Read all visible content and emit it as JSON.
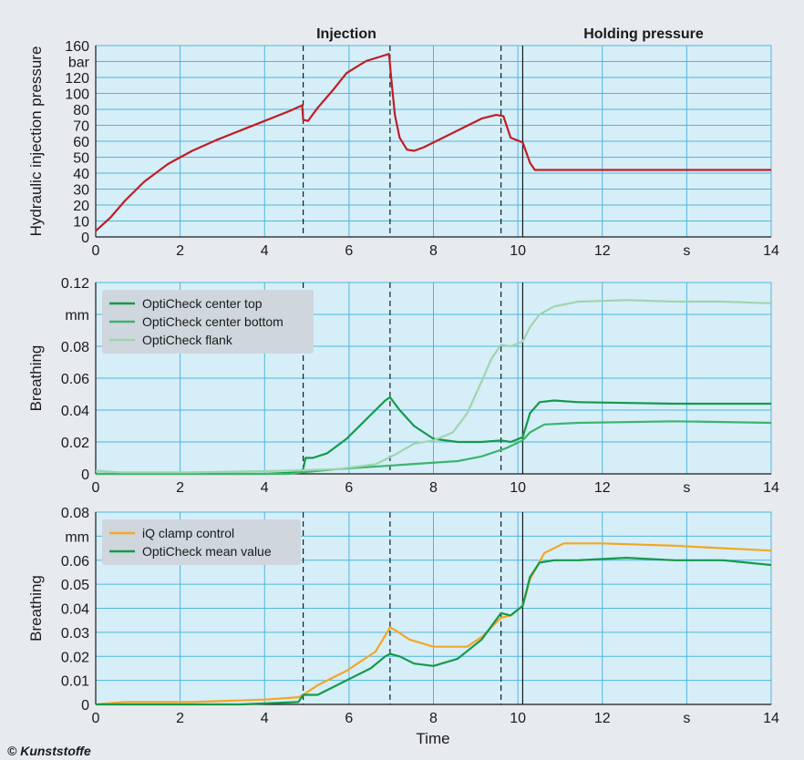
{
  "phases": [
    "Injection",
    "Holding pressure"
  ],
  "xlabel": "Time",
  "copyright": "© Kunststoffe",
  "colors": {
    "plot_bg": "#d6eef8",
    "grid": "#4fb6dd",
    "pressure": "#c01e24",
    "center_top": "#139a4a",
    "center_bottom": "#3cb46c",
    "flank": "#9fd5ad",
    "iq": "#f5a623",
    "mean": "#139a4a"
  },
  "chart_data": [
    {
      "type": "line",
      "ylabel": "Hydraulic injection pressure",
      "unit": "bar",
      "xlim": [
        0,
        14
      ],
      "ylim": [
        0,
        160
      ],
      "xticks": [
        "0",
        "2",
        "4",
        "6",
        "8",
        "10",
        "12",
        "s",
        "14"
      ],
      "yticks": [
        "0",
        "10",
        "20",
        "30",
        "40",
        "50",
        "60",
        "70",
        "80",
        "100",
        "120",
        "bar",
        "160"
      ],
      "vlines_dashed": [
        4.3,
        6.1,
        8.4
      ],
      "vline_solid": 8.85,
      "series": [
        {
          "color": "#c01e24",
          "x": [
            0,
            0.3,
            0.6,
            1.0,
            1.5,
            2.0,
            2.5,
            3.0,
            3.5,
            4.0,
            4.28,
            4.3,
            4.4,
            4.6,
            4.9,
            5.2,
            5.6,
            6.0,
            6.08,
            6.12,
            6.2,
            6.3,
            6.45,
            6.6,
            6.8,
            7.2,
            7.6,
            8.0,
            8.3,
            8.45,
            8.6,
            8.85,
            9.0,
            9.1,
            10,
            12,
            14
          ],
          "y": [
            5,
            16,
            30,
            46,
            61,
            72,
            81,
            89,
            97,
            105,
            110,
            98,
            97,
            108,
            122,
            137,
            147,
            152,
            153,
            135,
            102,
            83,
            73,
            72,
            75,
            83,
            91,
            99,
            102,
            101,
            83,
            79,
            62,
            56,
            56,
            56,
            56
          ]
        }
      ]
    },
    {
      "type": "line",
      "ylabel": "Breathing",
      "unit": "mm",
      "xlim": [
        0,
        14
      ],
      "ylim": [
        0,
        0.12
      ],
      "xticks": [
        "0",
        "2",
        "4",
        "6",
        "8",
        "10",
        "12",
        "s",
        "14"
      ],
      "yticks": [
        "0",
        "0.02",
        "0.04",
        "0.06",
        "0.08",
        "mm",
        "0.12"
      ],
      "vlines_dashed": [
        4.3,
        6.1,
        8.4
      ],
      "vline_solid": 8.85,
      "legend": [
        "OptiCheck center top",
        "OptiCheck center bottom",
        "OptiCheck flank"
      ],
      "series": [
        {
          "name": "OptiCheck center top",
          "color": "#139a4a",
          "x": [
            0,
            3.5,
            4.25,
            4.3,
            4.35,
            4.5,
            4.8,
            5.2,
            5.6,
            6.0,
            6.1,
            6.3,
            6.6,
            7.0,
            7.5,
            8.0,
            8.4,
            8.6,
            8.85,
            9.0,
            9.2,
            9.5,
            10,
            12,
            14
          ],
          "y": [
            0,
            0,
            0.001,
            0.003,
            0.01,
            0.01,
            0.013,
            0.022,
            0.034,
            0.046,
            0.048,
            0.04,
            0.03,
            0.022,
            0.02,
            0.02,
            0.021,
            0.02,
            0.023,
            0.038,
            0.045,
            0.046,
            0.045,
            0.044,
            0.044
          ]
        },
        {
          "name": "OptiCheck center bottom",
          "color": "#3cb46c",
          "x": [
            0,
            4.0,
            4.3,
            5.0,
            6.0,
            6.5,
            7.5,
            8.0,
            8.5,
            8.85,
            9.0,
            9.3,
            10,
            12,
            14
          ],
          "y": [
            0,
            0,
            0.001,
            0.003,
            0.005,
            0.006,
            0.008,
            0.011,
            0.016,
            0.021,
            0.026,
            0.031,
            0.032,
            0.033,
            0.032
          ]
        },
        {
          "name": "OptiCheck flank",
          "color": "#9fd5ad",
          "x": [
            0,
            0.5,
            2.0,
            4.0,
            5.0,
            5.8,
            6.2,
            6.6,
            7.0,
            7.4,
            7.7,
            8.0,
            8.2,
            8.4,
            8.6,
            8.85,
            9.0,
            9.2,
            9.5,
            10,
            11,
            12,
            13,
            14
          ],
          "y": [
            0.002,
            0.001,
            0.001,
            0.002,
            0.003,
            0.006,
            0.012,
            0.019,
            0.021,
            0.026,
            0.038,
            0.058,
            0.072,
            0.081,
            0.08,
            0.083,
            0.092,
            0.1,
            0.105,
            0.108,
            0.109,
            0.108,
            0.108,
            0.107
          ]
        }
      ]
    },
    {
      "type": "line",
      "ylabel": "Breathing",
      "unit": "mm",
      "xlim": [
        0,
        14
      ],
      "ylim": [
        0,
        0.08
      ],
      "xticks": [
        "0",
        "2",
        "4",
        "6",
        "8",
        "10",
        "12",
        "s",
        "14"
      ],
      "yticks": [
        "0",
        "0.01",
        "0.02",
        "0.03",
        "0.04",
        "0.05",
        "0.06",
        "mm",
        "0.08"
      ],
      "vlines_dashed": [
        4.3,
        6.1,
        8.4
      ],
      "vline_solid": 8.85,
      "legend": [
        "iQ clamp control",
        "OptiCheck mean value"
      ],
      "series": [
        {
          "name": "iQ clamp control",
          "color": "#f5a623",
          "x": [
            0,
            0.6,
            2.0,
            3.5,
            4.2,
            4.3,
            4.6,
            5.2,
            5.8,
            6.1,
            6.2,
            6.5,
            7.0,
            7.7,
            8.0,
            8.4,
            8.6,
            8.85,
            9.0,
            9.3,
            9.7,
            10.5,
            12,
            13,
            14
          ],
          "y": [
            0,
            0.001,
            0.001,
            0.002,
            0.003,
            0.004,
            0.008,
            0.014,
            0.022,
            0.032,
            0.031,
            0.027,
            0.024,
            0.024,
            0.028,
            0.036,
            0.037,
            0.041,
            0.052,
            0.063,
            0.067,
            0.067,
            0.066,
            0.065,
            0.064
          ]
        },
        {
          "name": "OptiCheck mean value",
          "color": "#139a4a",
          "x": [
            0,
            3.0,
            4.2,
            4.3,
            4.6,
            5.2,
            5.7,
            6.0,
            6.1,
            6.3,
            6.6,
            7.0,
            7.5,
            8.0,
            8.4,
            8.6,
            8.85,
            9.0,
            9.2,
            9.5,
            10,
            11,
            12,
            13,
            14
          ],
          "y": [
            0,
            0,
            0.001,
            0.004,
            0.004,
            0.01,
            0.015,
            0.02,
            0.021,
            0.02,
            0.017,
            0.016,
            0.019,
            0.027,
            0.038,
            0.037,
            0.041,
            0.053,
            0.059,
            0.06,
            0.06,
            0.061,
            0.06,
            0.06,
            0.058
          ]
        }
      ]
    }
  ]
}
